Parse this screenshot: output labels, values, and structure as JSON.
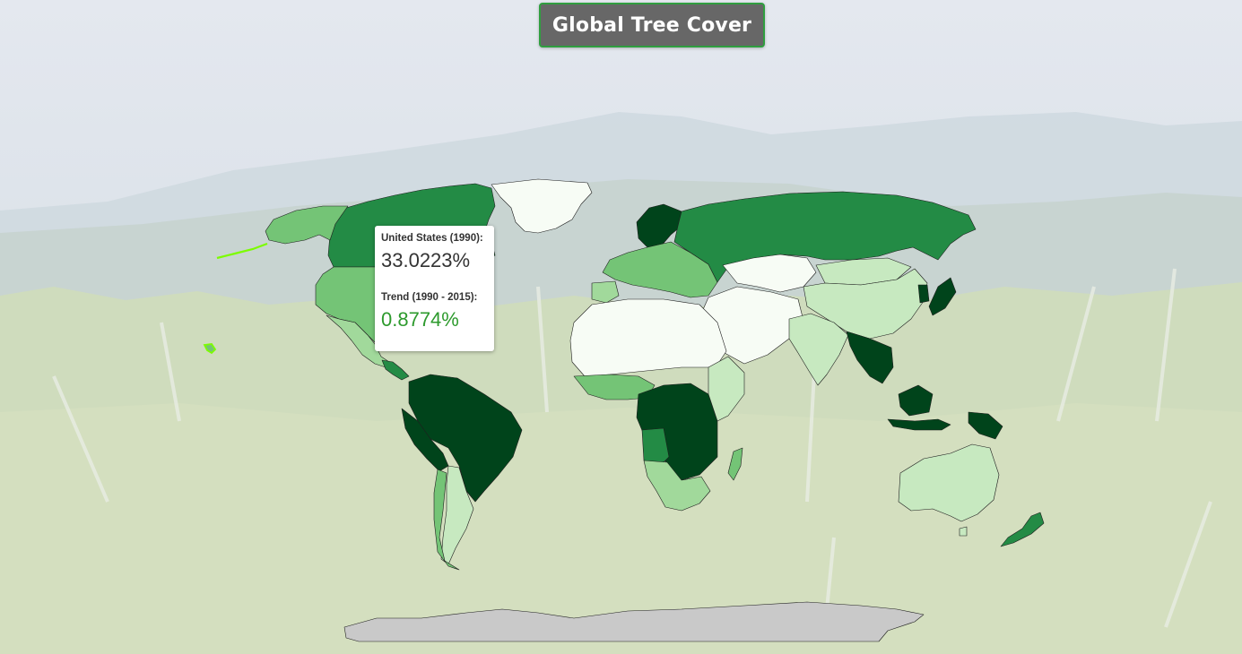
{
  "title": "Global Tree Cover",
  "tooltip": {
    "country_label": "United States (1990):",
    "country_value": "33.0223%",
    "trend_label": "Trend (1990 - 2015):",
    "trend_value": "0.8774%"
  },
  "colors": {
    "highlight": "#7cfc00",
    "trend_positive": "#2d9a2d",
    "title_bg": "#676767",
    "title_border": "#2f9e3f",
    "no_data": "#c9c9c9"
  },
  "map": {
    "projection": "equirectangular",
    "hovered_country": "United States",
    "regions": [
      {
        "id": "greenland",
        "fill": "#f7fcf5"
      },
      {
        "id": "canada",
        "fill": "#238b45"
      },
      {
        "id": "alaska",
        "fill": "#74c476"
      },
      {
        "id": "usa",
        "fill": "#74c476"
      },
      {
        "id": "mexico",
        "fill": "#a1d99b"
      },
      {
        "id": "central-america",
        "fill": "#238b45"
      },
      {
        "id": "brazil",
        "fill": "#00441b"
      },
      {
        "id": "andes",
        "fill": "#00441b"
      },
      {
        "id": "argentina",
        "fill": "#c7e9c0"
      },
      {
        "id": "chile",
        "fill": "#74c476"
      },
      {
        "id": "scandinavia",
        "fill": "#00441b"
      },
      {
        "id": "europe",
        "fill": "#74c476"
      },
      {
        "id": "russia",
        "fill": "#238b45"
      },
      {
        "id": "kazakhstan",
        "fill": "#f7fcf5"
      },
      {
        "id": "central-asia",
        "fill": "#f7fcf5"
      },
      {
        "id": "mongolia",
        "fill": "#c7e9c0"
      },
      {
        "id": "china",
        "fill": "#c7e9c0"
      },
      {
        "id": "korea-japan",
        "fill": "#00441b"
      },
      {
        "id": "india",
        "fill": "#c7e9c0"
      },
      {
        "id": "middle-east",
        "fill": "#f7fcf5"
      },
      {
        "id": "north-africa",
        "fill": "#f7fcf5"
      },
      {
        "id": "sahel",
        "fill": "#f7fcf5"
      },
      {
        "id": "west-africa",
        "fill": "#74c476"
      },
      {
        "id": "central-africa",
        "fill": "#00441b"
      },
      {
        "id": "east-africa",
        "fill": "#c7e9c0"
      },
      {
        "id": "southern-africa",
        "fill": "#a1d99b"
      },
      {
        "id": "madagascar",
        "fill": "#74c476"
      },
      {
        "id": "southeast-asia",
        "fill": "#00441b"
      },
      {
        "id": "indonesia",
        "fill": "#00441b"
      },
      {
        "id": "australia",
        "fill": "#c7e9c0"
      },
      {
        "id": "new-zealand",
        "fill": "#238b45"
      },
      {
        "id": "antarctica",
        "fill": "#c9c9c9"
      }
    ]
  }
}
